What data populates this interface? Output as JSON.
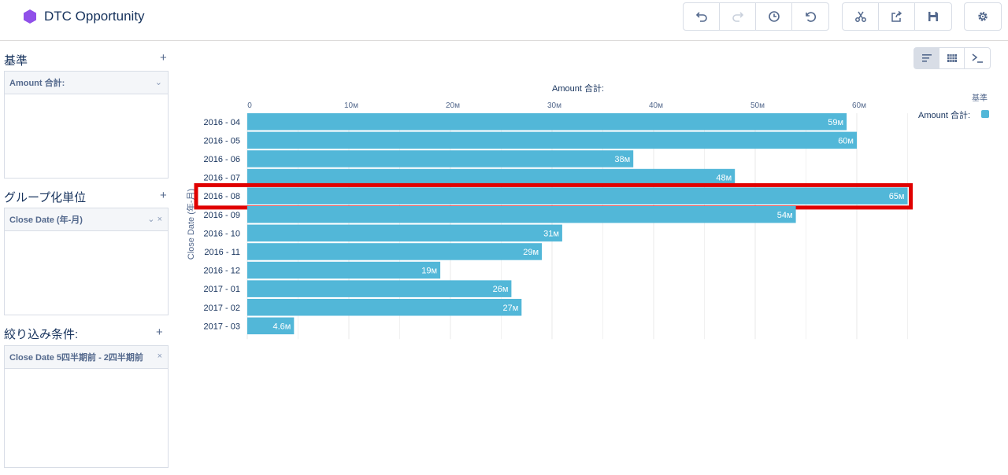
{
  "app": {
    "title": "DTC Opportunity",
    "icon": "hexagon-icon",
    "icon_color": "#9050e9"
  },
  "toolbar": {
    "buttons": [
      "undo-icon",
      "redo-icon",
      "history-icon",
      "reset-icon",
      "scissors-icon",
      "share-icon",
      "save-icon",
      "gear-icon"
    ]
  },
  "left_panel": {
    "measures": {
      "title": "基準",
      "add": "+",
      "items": [
        {
          "label": "Amount 合計:",
          "control": "⌄"
        }
      ]
    },
    "groups": {
      "title": "グループ化単位",
      "add": "+",
      "items": [
        {
          "label": "Close Date (年-月)",
          "control": "⌄ ×"
        }
      ]
    },
    "filters": {
      "title": "絞り込み条件:",
      "add": "+",
      "items": [
        {
          "label": "Close Date 5四半期前 - 2四半期前",
          "control": "×"
        }
      ]
    }
  },
  "view_switch": {
    "active": "bar-chart-icon",
    "options": [
      "bar-chart-icon",
      "table-icon",
      "terminal-icon"
    ]
  },
  "legend": {
    "title": "基準",
    "label": "Amount 合計:"
  },
  "colors": {
    "bar": "#52b7d8",
    "highlight": "#e00000",
    "grid": "#e8e8e8",
    "axis_text": "#54698d"
  },
  "chart_data": {
    "type": "bar",
    "orientation": "horizontal",
    "title": "Amount 合計:",
    "xlabel": "Amount 合計:",
    "ylabel": "Close Date (年-月)",
    "xlim": [
      0,
      65
    ],
    "x_ticks": [
      "0",
      "10м",
      "20м",
      "30м",
      "40м",
      "50м",
      "60м"
    ],
    "categories": [
      "2016 - 04",
      "2016 - 05",
      "2016 - 06",
      "2016 - 07",
      "2016 - 08",
      "2016 - 09",
      "2016 - 10",
      "2016 - 11",
      "2016 - 12",
      "2017 - 01",
      "2017 - 02",
      "2017 - 03"
    ],
    "values": [
      59,
      60,
      38,
      48,
      65,
      54,
      31,
      29,
      19,
      26,
      27,
      4.6
    ],
    "value_labels": [
      "59м",
      "60м",
      "38м",
      "48м",
      "65м",
      "54м",
      "31м",
      "29м",
      "19м",
      "26м",
      "27м",
      "4.6м"
    ],
    "highlighted_category": "2016 - 08",
    "grid": true,
    "legend": "top-right"
  }
}
